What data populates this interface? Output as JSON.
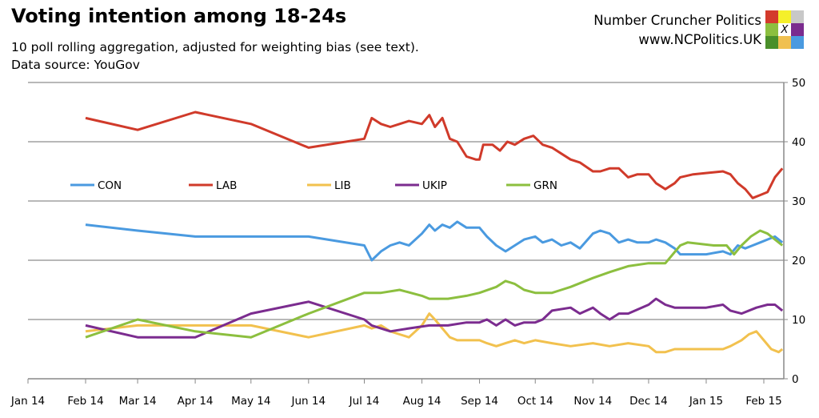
{
  "header": {
    "title": "Voting intention among 18-24s",
    "subtitle": "10 poll rolling aggregation, adjusted for weighting bias (see text).",
    "source": "Data source: YouGov",
    "brand_name": "Number Cruncher Politics",
    "brand_url": "www.NCPolitics.UK",
    "logo_mark": "X",
    "logo_colors": [
      "#d33a2c",
      "#f5f02a",
      "#c8c8c8",
      "#8cbf3f",
      "#ffffff",
      "#7a2b8e",
      "#4a8f2a",
      "#f0c050",
      "#4a9ae0"
    ]
  },
  "chart_data": {
    "type": "line",
    "title": "Voting intention among 18-24s",
    "ylim": [
      0,
      50
    ],
    "yticks": [
      0,
      10,
      20,
      30,
      40,
      50
    ],
    "y_axis_side": "right",
    "xlim": [
      "2014-01-01",
      "2015-02-11"
    ],
    "xticks": [
      {
        "date": "2014-01-01",
        "label": "Jan 14"
      },
      {
        "date": "2014-02-01",
        "label": "Feb 14"
      },
      {
        "date": "2014-03-01",
        "label": "Mar 14"
      },
      {
        "date": "2014-04-01",
        "label": "Apr 14"
      },
      {
        "date": "2014-05-01",
        "label": "May 14"
      },
      {
        "date": "2014-06-01",
        "label": "Jun 14"
      },
      {
        "date": "2014-07-01",
        "label": "Jul 14"
      },
      {
        "date": "2014-08-01",
        "label": "Aug 14"
      },
      {
        "date": "2014-09-01",
        "label": "Sep 14"
      },
      {
        "date": "2014-10-01",
        "label": "Oct 14"
      },
      {
        "date": "2014-11-01",
        "label": "Nov 14"
      },
      {
        "date": "2014-12-01",
        "label": "Dec 14"
      },
      {
        "date": "2015-01-01",
        "label": "Jan 15"
      },
      {
        "date": "2015-02-01",
        "label": "Feb 15"
      }
    ],
    "grid": "horizontal",
    "legend": "inside-top-left, single row",
    "series": [
      {
        "name": "CON",
        "color": "#4a9ae0",
        "points": [
          [
            "2014-02-01",
            26
          ],
          [
            "2014-03-01",
            25
          ],
          [
            "2014-04-01",
            24
          ],
          [
            "2014-05-01",
            24
          ],
          [
            "2014-06-01",
            24
          ],
          [
            "2014-07-01",
            22.5
          ],
          [
            "2014-07-05",
            20
          ],
          [
            "2014-07-10",
            21.5
          ],
          [
            "2014-07-15",
            22.5
          ],
          [
            "2014-07-20",
            23
          ],
          [
            "2014-07-25",
            22.5
          ],
          [
            "2014-08-01",
            24.5
          ],
          [
            "2014-08-05",
            26
          ],
          [
            "2014-08-08",
            25
          ],
          [
            "2014-08-12",
            26
          ],
          [
            "2014-08-16",
            25.5
          ],
          [
            "2014-08-20",
            26.5
          ],
          [
            "2014-08-25",
            25.5
          ],
          [
            "2014-09-01",
            25.5
          ],
          [
            "2014-09-05",
            24
          ],
          [
            "2014-09-10",
            22.5
          ],
          [
            "2014-09-15",
            21.5
          ],
          [
            "2014-09-20",
            22.5
          ],
          [
            "2014-09-25",
            23.5
          ],
          [
            "2014-10-01",
            24
          ],
          [
            "2014-10-05",
            23
          ],
          [
            "2014-10-10",
            23.5
          ],
          [
            "2014-10-15",
            22.5
          ],
          [
            "2014-10-20",
            23
          ],
          [
            "2014-10-25",
            22
          ],
          [
            "2014-11-01",
            24.5
          ],
          [
            "2014-11-05",
            25
          ],
          [
            "2014-11-10",
            24.5
          ],
          [
            "2014-11-15",
            23
          ],
          [
            "2014-11-20",
            23.5
          ],
          [
            "2014-11-25",
            23
          ],
          [
            "2014-12-01",
            23
          ],
          [
            "2014-12-05",
            23.5
          ],
          [
            "2014-12-10",
            23
          ],
          [
            "2014-12-15",
            22
          ],
          [
            "2014-12-18",
            21
          ],
          [
            "2015-01-01",
            21
          ],
          [
            "2015-01-10",
            21.5
          ],
          [
            "2015-01-14",
            21
          ],
          [
            "2015-01-18",
            22.5
          ],
          [
            "2015-01-22",
            22
          ],
          [
            "2015-01-26",
            22.5
          ],
          [
            "2015-01-30",
            23
          ],
          [
            "2015-02-03",
            23.5
          ],
          [
            "2015-02-07",
            24
          ],
          [
            "2015-02-11",
            23
          ]
        ]
      },
      {
        "name": "LAB",
        "color": "#d03a2a",
        "points": [
          [
            "2014-02-01",
            44
          ],
          [
            "2014-03-01",
            42
          ],
          [
            "2014-04-01",
            45
          ],
          [
            "2014-05-01",
            43
          ],
          [
            "2014-06-01",
            39
          ],
          [
            "2014-07-01",
            40.5
          ],
          [
            "2014-07-05",
            44
          ],
          [
            "2014-07-10",
            43
          ],
          [
            "2014-07-15",
            42.5
          ],
          [
            "2014-07-20",
            43
          ],
          [
            "2014-07-25",
            43.5
          ],
          [
            "2014-08-01",
            43
          ],
          [
            "2014-08-05",
            44.5
          ],
          [
            "2014-08-08",
            42.5
          ],
          [
            "2014-08-12",
            44
          ],
          [
            "2014-08-16",
            40.5
          ],
          [
            "2014-08-20",
            40
          ],
          [
            "2014-08-25",
            37.5
          ],
          [
            "2014-08-30",
            37
          ],
          [
            "2014-09-01",
            37
          ],
          [
            "2014-09-03",
            39.5
          ],
          [
            "2014-09-08",
            39.5
          ],
          [
            "2014-09-12",
            38.5
          ],
          [
            "2014-09-16",
            40
          ],
          [
            "2014-09-20",
            39.5
          ],
          [
            "2014-09-25",
            40.5
          ],
          [
            "2014-09-30",
            41
          ],
          [
            "2014-10-05",
            39.5
          ],
          [
            "2014-10-10",
            39
          ],
          [
            "2014-10-15",
            38
          ],
          [
            "2014-10-20",
            37
          ],
          [
            "2014-10-25",
            36.5
          ],
          [
            "2014-11-01",
            35
          ],
          [
            "2014-11-05",
            35
          ],
          [
            "2014-11-10",
            35.5
          ],
          [
            "2014-11-15",
            35.5
          ],
          [
            "2014-11-20",
            34
          ],
          [
            "2014-11-25",
            34.5
          ],
          [
            "2014-12-01",
            34.5
          ],
          [
            "2014-12-05",
            33
          ],
          [
            "2014-12-10",
            32
          ],
          [
            "2014-12-15",
            33
          ],
          [
            "2014-12-18",
            34
          ],
          [
            "2014-12-25",
            34.5
          ],
          [
            "2015-01-10",
            35
          ],
          [
            "2015-01-14",
            34.5
          ],
          [
            "2015-01-18",
            33
          ],
          [
            "2015-01-22",
            32
          ],
          [
            "2015-01-26",
            30.5
          ],
          [
            "2015-01-30",
            31
          ],
          [
            "2015-02-03",
            31.5
          ],
          [
            "2015-02-07",
            34
          ],
          [
            "2015-02-11",
            35.5
          ]
        ]
      },
      {
        "name": "LIB",
        "color": "#f2c14e",
        "points": [
          [
            "2014-02-01",
            8
          ],
          [
            "2014-03-01",
            9
          ],
          [
            "2014-04-01",
            9
          ],
          [
            "2014-05-01",
            9
          ],
          [
            "2014-06-01",
            7
          ],
          [
            "2014-07-01",
            9
          ],
          [
            "2014-07-05",
            8.5
          ],
          [
            "2014-07-10",
            9
          ],
          [
            "2014-07-15",
            8
          ],
          [
            "2014-07-20",
            7.5
          ],
          [
            "2014-07-25",
            7
          ],
          [
            "2014-08-01",
            9
          ],
          [
            "2014-08-05",
            11
          ],
          [
            "2014-08-08",
            10
          ],
          [
            "2014-08-12",
            8.5
          ],
          [
            "2014-08-16",
            7
          ],
          [
            "2014-08-20",
            6.5
          ],
          [
            "2014-08-25",
            6.5
          ],
          [
            "2014-09-01",
            6.5
          ],
          [
            "2014-09-05",
            6
          ],
          [
            "2014-09-10",
            5.5
          ],
          [
            "2014-09-15",
            6
          ],
          [
            "2014-09-20",
            6.5
          ],
          [
            "2014-09-25",
            6
          ],
          [
            "2014-10-01",
            6.5
          ],
          [
            "2014-10-10",
            6
          ],
          [
            "2014-10-20",
            5.5
          ],
          [
            "2014-11-01",
            6
          ],
          [
            "2014-11-10",
            5.5
          ],
          [
            "2014-11-20",
            6
          ],
          [
            "2014-12-01",
            5.5
          ],
          [
            "2014-12-05",
            4.5
          ],
          [
            "2014-12-10",
            4.5
          ],
          [
            "2014-12-15",
            5
          ],
          [
            "2014-12-20",
            5
          ],
          [
            "2015-01-01",
            5
          ],
          [
            "2015-01-10",
            5
          ],
          [
            "2015-01-14",
            5.5
          ],
          [
            "2015-01-20",
            6.5
          ],
          [
            "2015-01-24",
            7.5
          ],
          [
            "2015-01-28",
            8
          ],
          [
            "2015-02-01",
            6.5
          ],
          [
            "2015-02-05",
            5
          ],
          [
            "2015-02-09",
            4.5
          ],
          [
            "2015-02-11",
            5
          ]
        ]
      },
      {
        "name": "UKIP",
        "color": "#7b2c8f",
        "points": [
          [
            "2014-02-01",
            9
          ],
          [
            "2014-03-01",
            7
          ],
          [
            "2014-04-01",
            7
          ],
          [
            "2014-05-01",
            11
          ],
          [
            "2014-06-01",
            13
          ],
          [
            "2014-07-01",
            10
          ],
          [
            "2014-07-05",
            9
          ],
          [
            "2014-07-15",
            8
          ],
          [
            "2014-07-25",
            8.5
          ],
          [
            "2014-08-05",
            9
          ],
          [
            "2014-08-15",
            9
          ],
          [
            "2014-08-25",
            9.5
          ],
          [
            "2014-09-01",
            9.5
          ],
          [
            "2014-09-05",
            10
          ],
          [
            "2014-09-10",
            9
          ],
          [
            "2014-09-15",
            10
          ],
          [
            "2014-09-20",
            9
          ],
          [
            "2014-09-25",
            9.5
          ],
          [
            "2014-10-01",
            9.5
          ],
          [
            "2014-10-05",
            10
          ],
          [
            "2014-10-10",
            11.5
          ],
          [
            "2014-10-20",
            12
          ],
          [
            "2014-10-25",
            11
          ],
          [
            "2014-11-01",
            12
          ],
          [
            "2014-11-05",
            11
          ],
          [
            "2014-11-10",
            10
          ],
          [
            "2014-11-15",
            11
          ],
          [
            "2014-11-20",
            11
          ],
          [
            "2014-12-01",
            12.5
          ],
          [
            "2014-12-05",
            13.5
          ],
          [
            "2014-12-10",
            12.5
          ],
          [
            "2014-12-15",
            12
          ],
          [
            "2015-01-01",
            12
          ],
          [
            "2015-01-10",
            12.5
          ],
          [
            "2015-01-14",
            11.5
          ],
          [
            "2015-01-20",
            11
          ],
          [
            "2015-01-28",
            12
          ],
          [
            "2015-02-03",
            12.5
          ],
          [
            "2015-02-07",
            12.5
          ],
          [
            "2015-02-11",
            11.5
          ]
        ]
      },
      {
        "name": "GRN",
        "color": "#8cbf3f",
        "points": [
          [
            "2014-02-01",
            7
          ],
          [
            "2014-03-01",
            10
          ],
          [
            "2014-04-01",
            8
          ],
          [
            "2014-05-01",
            7
          ],
          [
            "2014-06-01",
            11
          ],
          [
            "2014-07-01",
            14.5
          ],
          [
            "2014-07-10",
            14.5
          ],
          [
            "2014-07-20",
            15
          ],
          [
            "2014-08-01",
            14
          ],
          [
            "2014-08-05",
            13.5
          ],
          [
            "2014-08-15",
            13.5
          ],
          [
            "2014-08-25",
            14
          ],
          [
            "2014-09-01",
            14.5
          ],
          [
            "2014-09-10",
            15.5
          ],
          [
            "2014-09-15",
            16.5
          ],
          [
            "2014-09-20",
            16
          ],
          [
            "2014-09-25",
            15
          ],
          [
            "2014-10-01",
            14.5
          ],
          [
            "2014-10-10",
            14.5
          ],
          [
            "2014-10-15",
            15
          ],
          [
            "2014-10-20",
            15.5
          ],
          [
            "2014-11-01",
            17
          ],
          [
            "2014-11-10",
            18
          ],
          [
            "2014-11-20",
            19
          ],
          [
            "2014-12-01",
            19.5
          ],
          [
            "2014-12-10",
            19.5
          ],
          [
            "2014-12-18",
            22.5
          ],
          [
            "2014-12-22",
            23
          ],
          [
            "2015-01-05",
            22.5
          ],
          [
            "2015-01-12",
            22.5
          ],
          [
            "2015-01-16",
            21
          ],
          [
            "2015-01-20",
            22.5
          ],
          [
            "2015-01-25",
            24
          ],
          [
            "2015-01-30",
            25
          ],
          [
            "2015-02-03",
            24.5
          ],
          [
            "2015-02-07",
            23.5
          ],
          [
            "2015-02-11",
            22.5
          ]
        ]
      }
    ]
  }
}
